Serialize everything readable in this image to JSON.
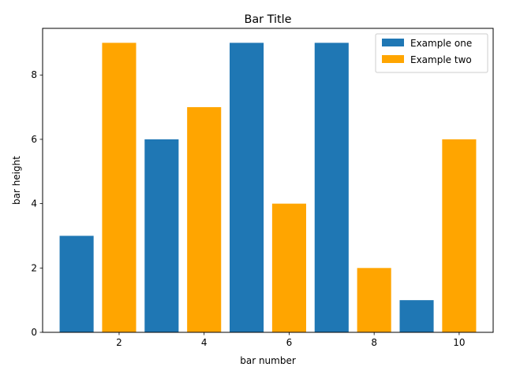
{
  "chart_data": {
    "type": "bar",
    "title": "Bar Title",
    "xlabel": "bar number",
    "ylabel": "bar height",
    "xlim": [
      0.2,
      10.8
    ],
    "ylim": [
      0,
      9.45
    ],
    "xticks": [
      2,
      4,
      6,
      8,
      10
    ],
    "yticks": [
      0,
      2,
      4,
      6,
      8
    ],
    "grid": false,
    "legend_position": "top-right",
    "bar_width": 0.8,
    "series": [
      {
        "name": "Example one",
        "color": "#1f77b4",
        "x": [
          1,
          3,
          5,
          7,
          9
        ],
        "values": [
          3,
          6,
          9,
          9,
          1
        ]
      },
      {
        "name": "Example two",
        "color": "#ffa500",
        "x": [
          2,
          4,
          6,
          8,
          10
        ],
        "values": [
          9,
          7,
          4,
          2,
          6
        ]
      }
    ]
  }
}
